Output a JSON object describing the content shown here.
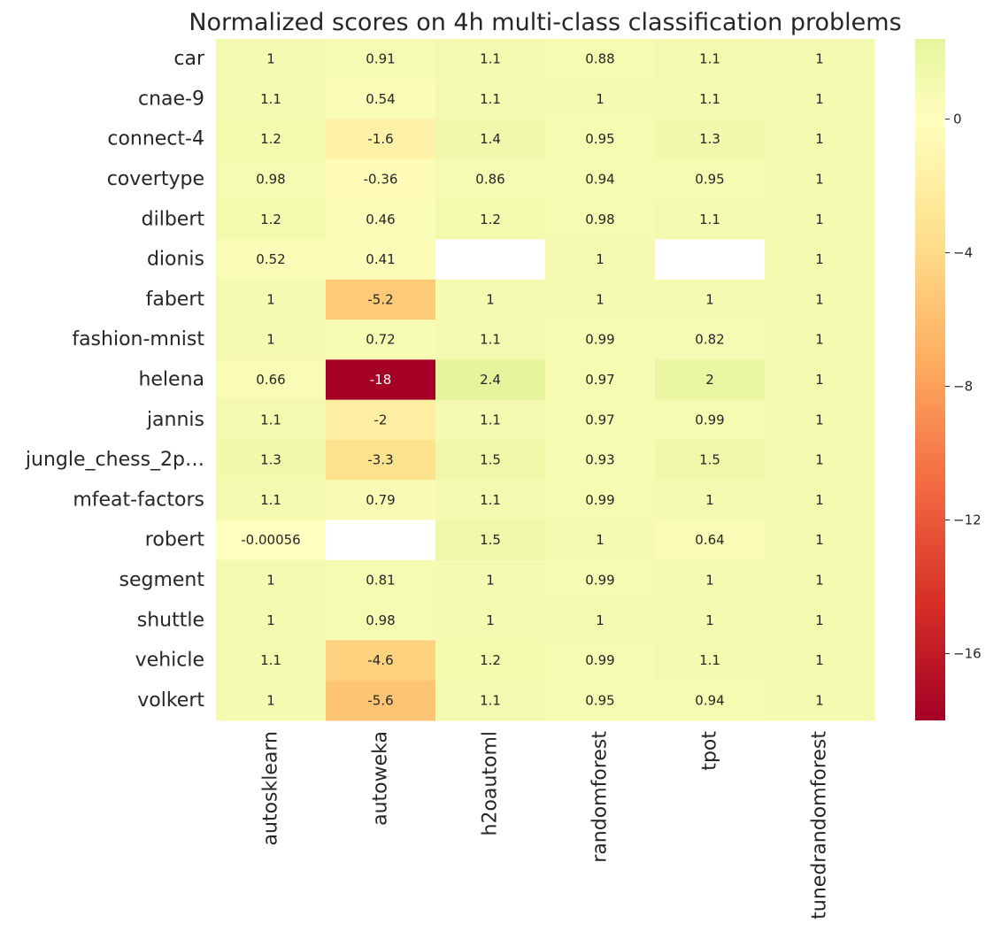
{
  "chart_data": {
    "type": "heatmap",
    "title": "Normalized scores on 4h multi-class classification problems",
    "xlabel": "",
    "ylabel": "",
    "columns": [
      "autosklearn",
      "autoweka",
      "h2oautoml",
      "randomforest",
      "tpot",
      "tunedrandomforest"
    ],
    "rows": [
      "car",
      "cnae-9",
      "connect-4",
      "covertype",
      "dilbert",
      "dionis",
      "fabert",
      "fashion-mnist",
      "helena",
      "jannis",
      "jungle_chess_2p…",
      "mfeat-factors",
      "robert",
      "segment",
      "shuttle",
      "vehicle",
      "volkert"
    ],
    "values": [
      [
        1.0,
        0.91,
        1.1,
        0.88,
        1.1,
        1.0
      ],
      [
        1.1,
        0.54,
        1.1,
        1.0,
        1.1,
        1.0
      ],
      [
        1.2,
        -1.6,
        1.4,
        0.95,
        1.3,
        1.0
      ],
      [
        0.98,
        -0.36,
        0.86,
        0.94,
        0.95,
        1.0
      ],
      [
        1.2,
        0.46,
        1.2,
        0.98,
        1.1,
        1.0
      ],
      [
        0.52,
        0.41,
        null,
        1.0,
        null,
        1.0
      ],
      [
        1.0,
        -5.2,
        1.0,
        1.0,
        1.0,
        1.0
      ],
      [
        1.0,
        0.72,
        1.1,
        0.99,
        0.82,
        1.0
      ],
      [
        0.66,
        -18.0,
        2.4,
        0.97,
        2.0,
        1.0
      ],
      [
        1.1,
        -2.0,
        1.1,
        0.97,
        0.99,
        1.0
      ],
      [
        1.3,
        -3.3,
        1.5,
        0.93,
        1.5,
        1.0
      ],
      [
        1.1,
        0.79,
        1.1,
        0.99,
        1.0,
        1.0
      ],
      [
        -0.00056,
        null,
        1.5,
        1.0,
        0.64,
        1.0
      ],
      [
        1.0,
        0.81,
        1.0,
        0.99,
        1.0,
        1.0
      ],
      [
        1.0,
        0.98,
        1.0,
        1.0,
        1.0,
        1.0
      ],
      [
        1.1,
        -4.6,
        1.2,
        0.99,
        1.1,
        1.0
      ],
      [
        1.0,
        -5.6,
        1.1,
        0.95,
        0.94,
        1.0
      ]
    ],
    "cell_labels": [
      [
        "1",
        "0.91",
        "1.1",
        "0.88",
        "1.1",
        "1"
      ],
      [
        "1.1",
        "0.54",
        "1.1",
        "1",
        "1.1",
        "1"
      ],
      [
        "1.2",
        "-1.6",
        "1.4",
        "0.95",
        "1.3",
        "1"
      ],
      [
        "0.98",
        "-0.36",
        "0.86",
        "0.94",
        "0.95",
        "1"
      ],
      [
        "1.2",
        "0.46",
        "1.2",
        "0.98",
        "1.1",
        "1"
      ],
      [
        "0.52",
        "0.41",
        "",
        "1",
        "",
        "1"
      ],
      [
        "1",
        "-5.2",
        "1",
        "1",
        "1",
        "1"
      ],
      [
        "1",
        "0.72",
        "1.1",
        "0.99",
        "0.82",
        "1"
      ],
      [
        "0.66",
        "-18",
        "2.4",
        "0.97",
        "2",
        "1"
      ],
      [
        "1.1",
        "-2",
        "1.1",
        "0.97",
        "0.99",
        "1"
      ],
      [
        "1.3",
        "-3.3",
        "1.5",
        "0.93",
        "1.5",
        "1"
      ],
      [
        "1.1",
        "0.79",
        "1.1",
        "0.99",
        "1",
        "1"
      ],
      [
        "-0.00056",
        "",
        "1.5",
        "1",
        "0.64",
        "1"
      ],
      [
        "1",
        "0.81",
        "1",
        "0.99",
        "1",
        "1"
      ],
      [
        "1",
        "0.98",
        "1",
        "1",
        "1",
        "1"
      ],
      [
        "1.1",
        "-4.6",
        "1.2",
        "0.99",
        "1.1",
        "1"
      ],
      [
        "1",
        "-5.6",
        "1.1",
        "0.95",
        "0.94",
        "1"
      ]
    ],
    "colormap": "RdYlGn",
    "color_range": [
      -18.0,
      2.4
    ],
    "colorbar_ticks": [
      0,
      -4,
      -8,
      -12,
      -16
    ],
    "colorbar_tick_labels": [
      "0",
      "−4",
      "−8",
      "−12",
      "−16"
    ],
    "missing_color": "#ffffff",
    "grid": false,
    "legend": "colorbar-right"
  }
}
